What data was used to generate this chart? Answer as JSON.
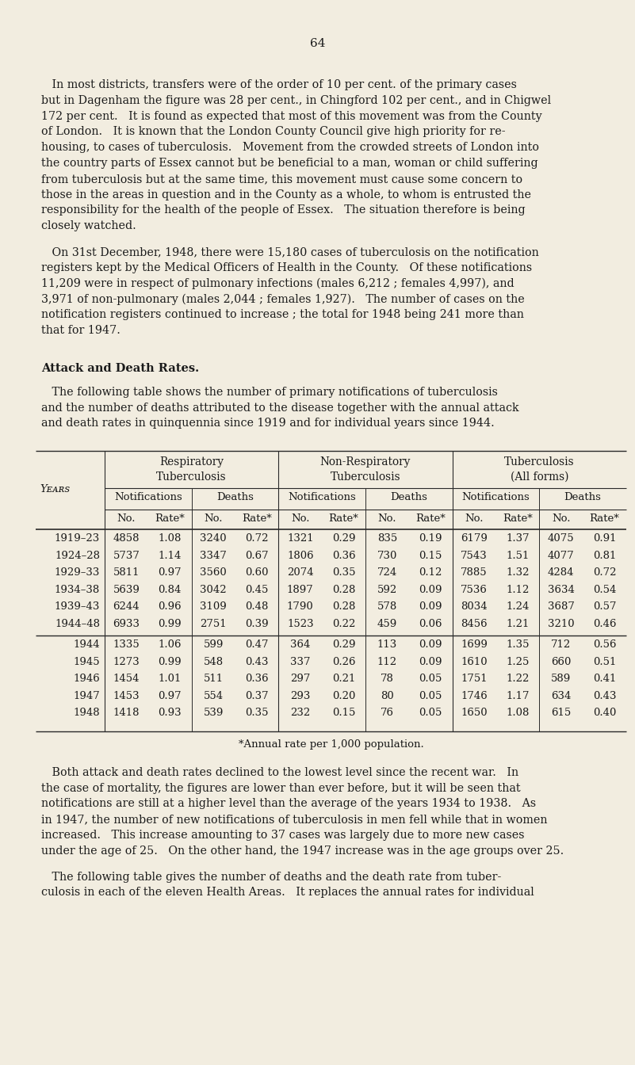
{
  "page_number": "64",
  "bg_color": "#f2ede0",
  "text_color": "#1a1a1a",
  "para1_lines": [
    "   In most districts, transfers were of the order of 10 per cent. of the primary cases",
    "but in Dagenham the figure was 28 per cent., in Chingford 102 per cent., and in Chigwel",
    "172 per cent.   It is found as expected that most of this movement was from the County",
    "of London.   It is known that the London County Council give high priority for re-",
    "housing, to cases of tuberculosis.   Movement from the crowded streets of London into",
    "the country parts of Essex cannot but be beneficial to a man, woman or child suffering",
    "from tuberculosis but at the same time, this movement must cause some concern to",
    "those in the areas in question and in the County as a whole, to whom is entrusted the",
    "responsibility for the health of the people of Essex.   The situation therefore is being",
    "closely watched."
  ],
  "para2_lines": [
    "   On 31st December, 1948, there were 15,180 cases of tuberculosis on the notification",
    "registers kept by the Medical Officers of Health in the County.   Of these notifications",
    "11,209 were in respect of pulmonary infections (males 6,212 ; females 4,997), and",
    "3,971 of non-pulmonary (males 2,044 ; females 1,927).   The number of cases on the",
    "notification registers continued to increase ; the total for 1948 being 241 more than",
    "that for 1947."
  ],
  "section_heading": "Attack and Death Rates.",
  "para3_lines": [
    "   The following table shows the number of primary notifications of tuberculosis",
    "and the number of deaths attributed to the disease together with the annual attack",
    "and death rates in quinquennia since 1919 and for individual years since 1944."
  ],
  "table_group_headers": [
    "Respiratory\nTuberculosis",
    "Non-Respiratory\nTuberculosis",
    "Tuberculosis\n(All forms)"
  ],
  "years_label": "Years",
  "table_rows": [
    [
      "1919–23",
      "4858",
      "1.08",
      "3240",
      "0.72",
      "1321",
      "0.29",
      "835",
      "0.19",
      "6179",
      "1.37",
      "4075",
      "0.91"
    ],
    [
      "1924–28",
      "5737",
      "1.14",
      "3347",
      "0.67",
      "1806",
      "0.36",
      "730",
      "0.15",
      "7543",
      "1.51",
      "4077",
      "0.81"
    ],
    [
      "1929–33",
      "5811",
      "0.97",
      "3560",
      "0.60",
      "2074",
      "0.35",
      "724",
      "0.12",
      "7885",
      "1.32",
      "4284",
      "0.72"
    ],
    [
      "1934–38",
      "5639",
      "0.84",
      "3042",
      "0.45",
      "1897",
      "0.28",
      "592",
      "0.09",
      "7536",
      "1.12",
      "3634",
      "0.54"
    ],
    [
      "1939–43",
      "6244",
      "0.96",
      "3109",
      "0.48",
      "1790",
      "0.28",
      "578",
      "0.09",
      "8034",
      "1.24",
      "3687",
      "0.57"
    ],
    [
      "1944–48",
      "6933",
      "0.99",
      "2751",
      "0.39",
      "1523",
      "0.22",
      "459",
      "0.06",
      "8456",
      "1.21",
      "3210",
      "0.46"
    ],
    [
      "1944",
      "1335",
      "1.06",
      "599",
      "0.47",
      "364",
      "0.29",
      "113",
      "0.09",
      "1699",
      "1.35",
      "712",
      "0.56"
    ],
    [
      "1945",
      "1273",
      "0.99",
      "548",
      "0.43",
      "337",
      "0.26",
      "112",
      "0.09",
      "1610",
      "1.25",
      "660",
      "0.51"
    ],
    [
      "1946",
      "1454",
      "1.01",
      "511",
      "0.36",
      "297",
      "0.21",
      "78",
      "0.05",
      "1751",
      "1.22",
      "589",
      "0.41"
    ],
    [
      "1947",
      "1453",
      "0.97",
      "554",
      "0.37",
      "293",
      "0.20",
      "80",
      "0.05",
      "1746",
      "1.17",
      "634",
      "0.43"
    ],
    [
      "1948",
      "1418",
      "0.93",
      "539",
      "0.35",
      "232",
      "0.15",
      "76",
      "0.05",
      "1650",
      "1.08",
      "615",
      "0.40"
    ]
  ],
  "footnote": "*Annual rate per 1,000 population.",
  "para4_lines": [
    "   Both attack and death rates declined to the lowest level since the recent war.   In",
    "the case of mortality, the figures are lower than ever before, but it will be seen that",
    "notifications are still at a higher level than the average of the years 1934 to 1938.   As",
    "in 1947, the number of new notifications of tuberculosis in men fell while that in women",
    "increased.   This increase amounting to 37 cases was largely due to more new cases",
    "under the age of 25.   On the other hand, the 1947 increase was in the age groups over 25."
  ],
  "para5_lines": [
    "   The following table gives the number of deaths and the death rate from tuber-",
    "culosis in each of the eleven Health Areas.   It replaces the annual rates for individual"
  ]
}
